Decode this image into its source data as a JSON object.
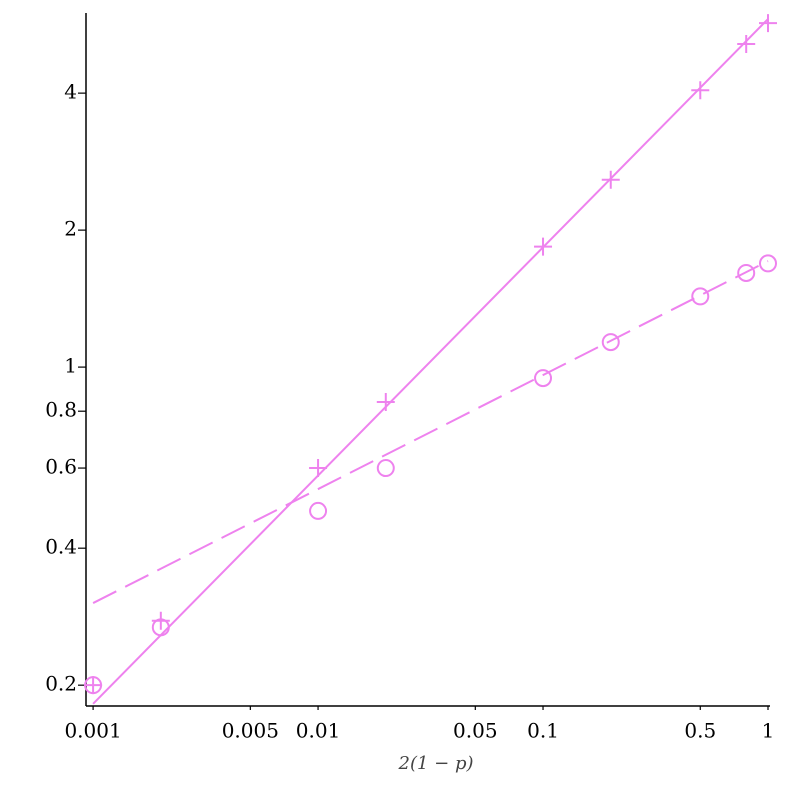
{
  "chart_data": {
    "type": "scatter",
    "xlabel": "2(1 − p)",
    "log_x": true,
    "log_y": true,
    "xlim": [
      0.00093,
      1
    ],
    "ylim": [
      0.18,
      6
    ],
    "xticks": [
      0.001,
      0.005,
      0.01,
      0.05,
      0.1,
      0.5,
      1
    ],
    "yticks": [
      0.2,
      0.4,
      0.6,
      0.8,
      1,
      2,
      4
    ],
    "series": [
      {
        "marker": "plus",
        "color": "#ee82ee",
        "x": [
          0.001,
          0.002,
          0.01,
          0.02,
          0.1,
          0.2,
          0.5,
          0.8,
          1
        ],
        "values": [
          0.2,
          0.277,
          0.6,
          0.838,
          1.84,
          2.58,
          4.06,
          5.13,
          5.7
        ]
      },
      {
        "marker": "circle",
        "color": "#ee82ee",
        "x": [
          0.001,
          0.002,
          0.01,
          0.02,
          0.1,
          0.2,
          0.5,
          0.8,
          1
        ],
        "values": [
          0.2,
          0.268,
          0.483,
          0.6,
          0.946,
          1.135,
          1.43,
          1.61,
          1.69
        ]
      },
      {
        "line": "solid",
        "color": "#ee82ee",
        "x": [
          0.001,
          1
        ],
        "values": [
          0.182,
          5.82
        ]
      },
      {
        "line": "dashed",
        "color": "#ee82ee",
        "x": [
          0.001,
          1
        ],
        "values": [
          0.303,
          1.71
        ]
      }
    ]
  }
}
